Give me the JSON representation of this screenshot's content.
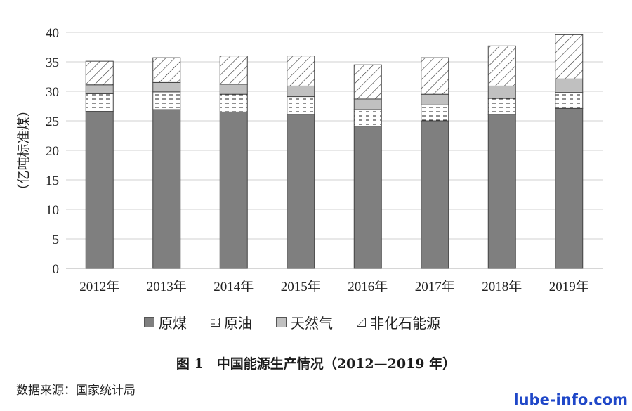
{
  "chart_data": {
    "type": "bar",
    "stacked": true,
    "ylabel": "（亿吨标准煤）",
    "ylim": [
      0,
      40
    ],
    "yticks": [
      0,
      5,
      10,
      15,
      20,
      25,
      30,
      35,
      40
    ],
    "grid": true,
    "legend_position": "bottom",
    "categories": [
      "2012年",
      "2013年",
      "2014年",
      "2015年",
      "2016年",
      "2017年",
      "2018年",
      "2019年"
    ],
    "series": [
      {
        "name": "原煤",
        "values": [
          26.6,
          26.9,
          26.5,
          26.1,
          24.1,
          25.0,
          26.1,
          27.1
        ],
        "color": "#7f7f7f",
        "pattern": "solid"
      },
      {
        "name": "原油",
        "values": [
          3.0,
          3.0,
          3.0,
          3.0,
          2.8,
          2.7,
          2.7,
          2.7
        ],
        "color": "#ffffff",
        "pattern": "dashes"
      },
      {
        "name": "天然气",
        "values": [
          1.5,
          1.6,
          1.7,
          1.8,
          1.8,
          1.8,
          2.1,
          2.3
        ],
        "color": "#c0c0c0",
        "pattern": "solid"
      },
      {
        "name": "非化石能源",
        "values": [
          4.0,
          4.2,
          4.8,
          5.1,
          5.8,
          6.2,
          6.8,
          7.5
        ],
        "color": "#ffffff",
        "pattern": "diagonal"
      }
    ]
  },
  "caption": "图 1　中国能源生产情况（2012—2019 年）",
  "source": "数据来源：国家统计局",
  "watermark": "lube-info.com"
}
